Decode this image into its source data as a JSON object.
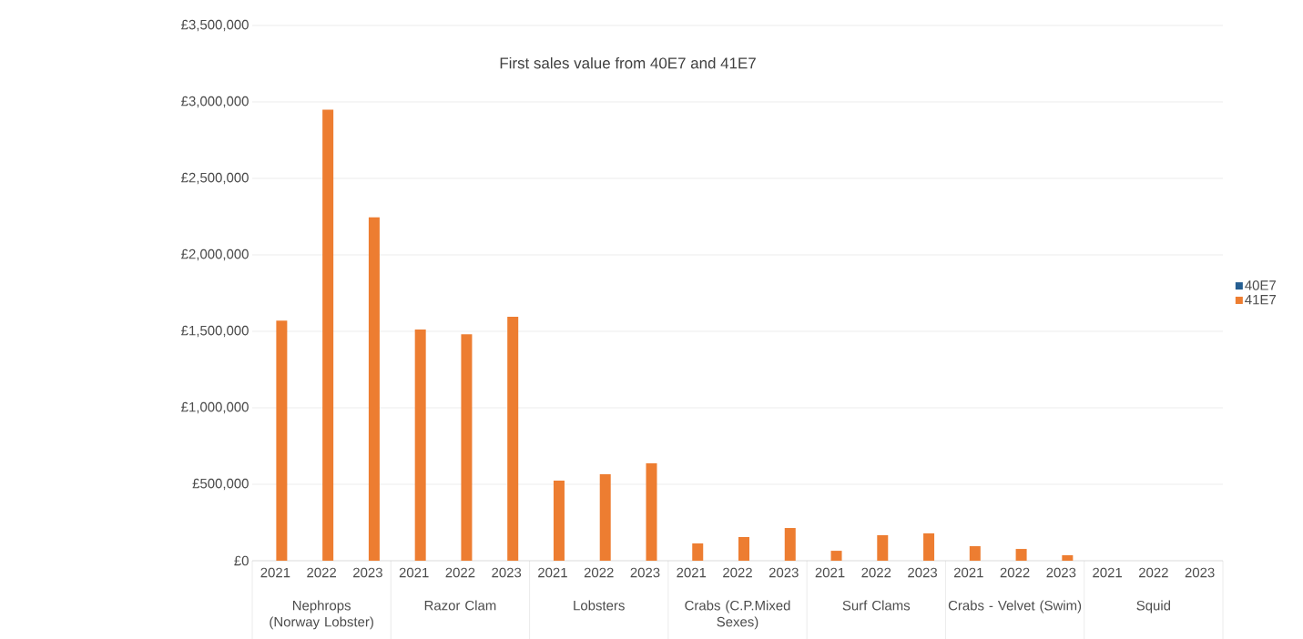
{
  "chart_data": {
    "type": "bar",
    "title": "First sales value from 40E7 and 41E7",
    "categories": [
      "2021",
      "2022",
      "2023",
      "2021",
      "2022",
      "2023",
      "2021",
      "2022",
      "2023",
      "2021",
      "2022",
      "2023",
      "2021",
      "2022",
      "2023",
      "2021",
      "2022",
      "2023",
      "2021",
      "2022",
      "2023"
    ],
    "annotations": [
      "Nephrops (Norway Lobster)",
      "Razor Clam",
      "Lobsters",
      "Crabs (C.P.Mixed Sexes)",
      "Surf Clams",
      "Crabs - Velvet (Swim)",
      "Squid"
    ],
    "series": [
      {
        "name": "40E7",
        "color": "#255e91",
        "values": [
          0,
          0,
          0,
          0,
          0,
          0,
          0,
          0,
          0,
          0,
          0,
          0,
          0,
          0,
          0,
          0,
          0,
          0,
          0,
          0,
          0
        ]
      },
      {
        "name": "41E7",
        "color": "#ed7d31",
        "values": [
          1570000,
          2950000,
          2245000,
          1512000,
          1480000,
          1595000,
          524000,
          565000,
          637000,
          113000,
          155000,
          214000,
          65000,
          167000,
          179000,
          95000,
          77000,
          36000,
          0,
          0,
          0
        ]
      }
    ],
    "ylim": [
      0,
      3500000
    ],
    "yticks": [
      {
        "value": 0,
        "label": "£0"
      },
      {
        "value": 500000,
        "label": "£500,000"
      },
      {
        "value": 1000000,
        "label": "£1,000,000"
      },
      {
        "value": 1500000,
        "label": "£1,500,000"
      },
      {
        "value": 2000000,
        "label": "£2,000,000"
      },
      {
        "value": 2500000,
        "label": "£2,500,000"
      },
      {
        "value": 3000000,
        "label": "£3,000,000"
      },
      {
        "value": 3500000,
        "label": "£3,500,000"
      }
    ],
    "grid": "y",
    "legend": "right"
  }
}
